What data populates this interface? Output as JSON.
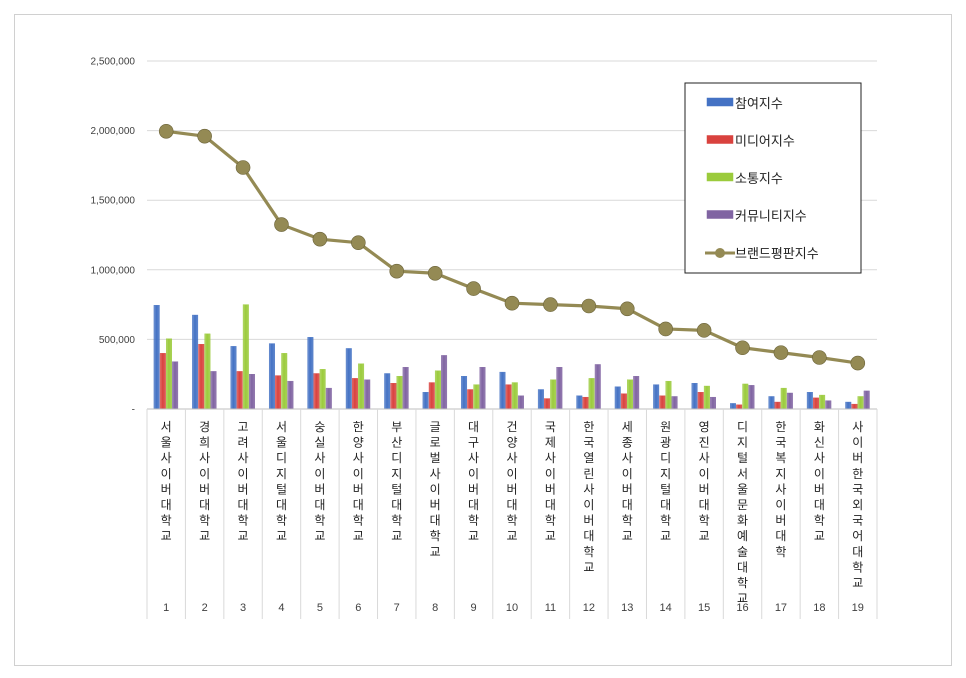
{
  "chart_data": {
    "type": "bar",
    "categories": [
      "서울사이버대학교",
      "경희사이버대학교",
      "고려사이버대학교",
      "서울디지털대학교",
      "숭실사이버대학교",
      "한양사이버대학교",
      "부산디지털대학교",
      "글로벌사이버대학교",
      "대구사이버대학교",
      "건양사이버대학교",
      "국제사이버대학교",
      "한국열린사이버대학교",
      "세종사이버대학교",
      "원광디지털대학교",
      "영진사이버대학교",
      "디지털서울문화예술대학교",
      "한국복지사이버대학",
      "화신사이버대학교",
      "사이버한국외국어대학교"
    ],
    "ranks": [
      "1",
      "2",
      "3",
      "4",
      "5",
      "6",
      "7",
      "8",
      "9",
      "10",
      "11",
      "12",
      "13",
      "14",
      "15",
      "16",
      "17",
      "18",
      "19"
    ],
    "ylim": [
      0,
      2500000
    ],
    "yticks": [
      0,
      500000,
      1000000,
      1500000,
      2000000,
      2500000
    ],
    "ytick_labels": [
      "-",
      "500,000",
      "1,000,000",
      "1,500,000",
      "2,000,000",
      "2,500,000"
    ],
    "grid": true,
    "legend_position": "top-right",
    "series": [
      {
        "name": "참여지수",
        "kind": "bar",
        "color": "#4472c4",
        "values": [
          745000,
          675000,
          450000,
          470000,
          515000,
          435000,
          255000,
          120000,
          235000,
          265000,
          140000,
          95000,
          160000,
          175000,
          185000,
          40000,
          90000,
          120000,
          50000
        ]
      },
      {
        "name": "미디어지수",
        "kind": "bar",
        "color": "#d9423e",
        "values": [
          400000,
          465000,
          270000,
          240000,
          255000,
          220000,
          185000,
          190000,
          140000,
          175000,
          75000,
          85000,
          110000,
          95000,
          120000,
          30000,
          50000,
          80000,
          35000
        ]
      },
      {
        "name": "소통지수",
        "kind": "bar",
        "color": "#9bcb3c",
        "values": [
          505000,
          540000,
          750000,
          400000,
          285000,
          325000,
          235000,
          275000,
          175000,
          190000,
          210000,
          220000,
          210000,
          200000,
          165000,
          180000,
          150000,
          100000,
          90000
        ]
      },
      {
        "name": "커뮤니티지수",
        "kind": "bar",
        "color": "#8064a2",
        "values": [
          340000,
          270000,
          250000,
          200000,
          150000,
          210000,
          300000,
          385000,
          300000,
          95000,
          300000,
          320000,
          235000,
          90000,
          85000,
          170000,
          115000,
          60000,
          130000
        ]
      },
      {
        "name": "브랜드평판지수",
        "kind": "line",
        "color": "#948a54",
        "values": [
          1995000,
          1960000,
          1735000,
          1325000,
          1220000,
          1195000,
          990000,
          975000,
          865000,
          760000,
          750000,
          740000,
          720000,
          575000,
          565000,
          440000,
          405000,
          370000,
          330000
        ]
      }
    ]
  }
}
